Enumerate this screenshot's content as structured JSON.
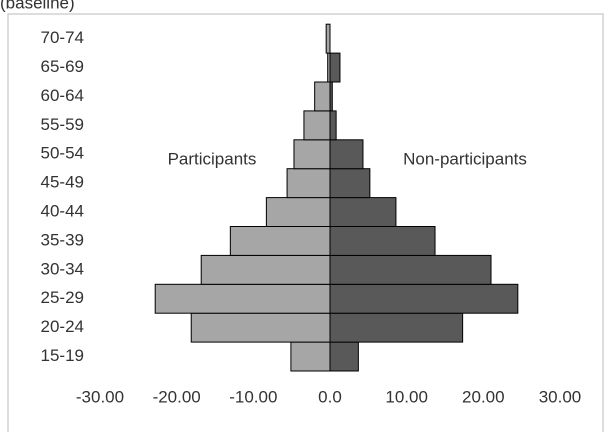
{
  "chart_data": {
    "type": "pyramid",
    "subtitle": "(baseline)",
    "categories": [
      "15-19",
      "20-24",
      "25-29",
      "30-34",
      "35-39",
      "40-44",
      "45-49",
      "50-54",
      "55-59",
      "60-64",
      "65-69",
      "70-74"
    ],
    "series": [
      {
        "name": "Participants",
        "color": "#a6a6a6",
        "values": [
          -5.1,
          -18.1,
          -22.8,
          -16.8,
          -13.0,
          -8.3,
          -5.6,
          -4.7,
          -3.4,
          -2.0,
          -0.3,
          -0.5
        ]
      },
      {
        "name": "Non-participants",
        "color": "#595959",
        "values": [
          3.7,
          17.3,
          24.5,
          21.0,
          13.7,
          8.6,
          5.2,
          4.3,
          0.8,
          0.3,
          1.3,
          0
        ]
      }
    ],
    "xlim": [
      -30,
      30
    ],
    "xticks": [
      {
        "value": -30,
        "label": "-30.00"
      },
      {
        "value": -20,
        "label": "-20.00"
      },
      {
        "value": -10,
        "label": "-10.00"
      },
      {
        "value": 0,
        "label": "0.0"
      },
      {
        "value": 10,
        "label": "10.00"
      },
      {
        "value": 20,
        "label": "20.00"
      },
      {
        "value": 30,
        "label": "30.00"
      }
    ]
  }
}
